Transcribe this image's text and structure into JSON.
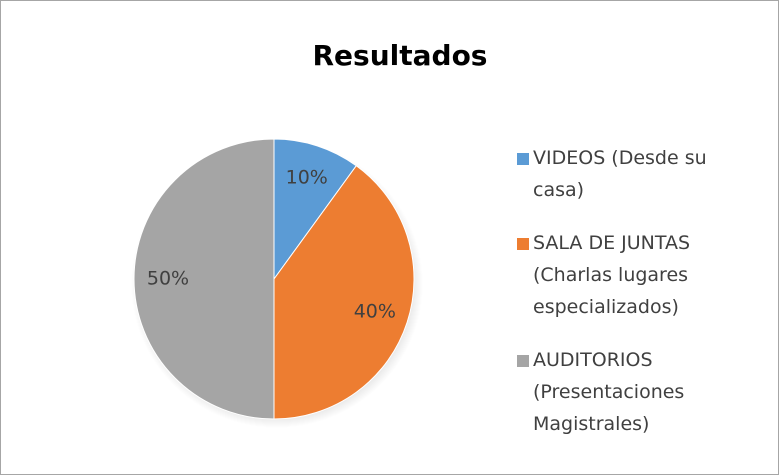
{
  "chart_data": {
    "type": "pie",
    "title": "Resultados",
    "categories": [
      "VIDEOS (Desde su casa)",
      "SALA DE JUNTAS (Charlas lugares especializados)",
      "AUDITORIOS (Presentaciones Magistrales)"
    ],
    "values": [
      10,
      40,
      50
    ],
    "value_labels": [
      "10%",
      "40%",
      "50%"
    ],
    "colors": [
      "#5b9bd5",
      "#ed7d31",
      "#a5a5a5"
    ],
    "legend": "right"
  }
}
